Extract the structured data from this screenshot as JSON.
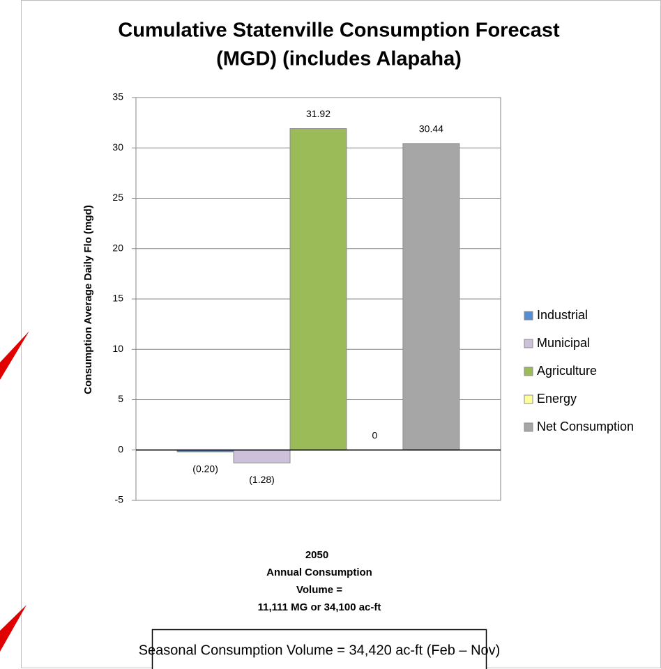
{
  "chart_data": {
    "type": "bar",
    "title": [
      "Cumulative Statenville Consumption Forecast",
      "(MGD) (includes Alapaha)"
    ],
    "ylabel": "Consumption Average Daily Flo (mgd)",
    "categories": [
      "2050"
    ],
    "xlabel": [
      "Annual Consumption",
      "Volume =",
      "11,111 MG or 34,100 ac-ft"
    ],
    "note": "Seasonal Consumption Volume = 34,420 ac-ft (Feb – Nov)",
    "series": [
      {
        "name": "Industrial",
        "color": "#558ed5",
        "values": [
          -0.2
        ],
        "value_labels": [
          "(0.20)"
        ]
      },
      {
        "name": "Municipal",
        "color": "#ccc0da",
        "values": [
          -1.28
        ],
        "value_labels": [
          "(1.28)"
        ]
      },
      {
        "name": "Agriculture",
        "color": "#9bbb59",
        "values": [
          31.92
        ]
      },
      {
        "name": "Energy",
        "color": "#ffff99",
        "values": [
          0
        ]
      },
      {
        "name": "Net Consumption",
        "color": "#a6a6a6",
        "values": [
          30.44
        ]
      }
    ],
    "ylim": [
      -5,
      35
    ],
    "yticks": [
      -5,
      0,
      5,
      10,
      15,
      20,
      25,
      30,
      35
    ],
    "grid": true,
    "legend": "right"
  }
}
